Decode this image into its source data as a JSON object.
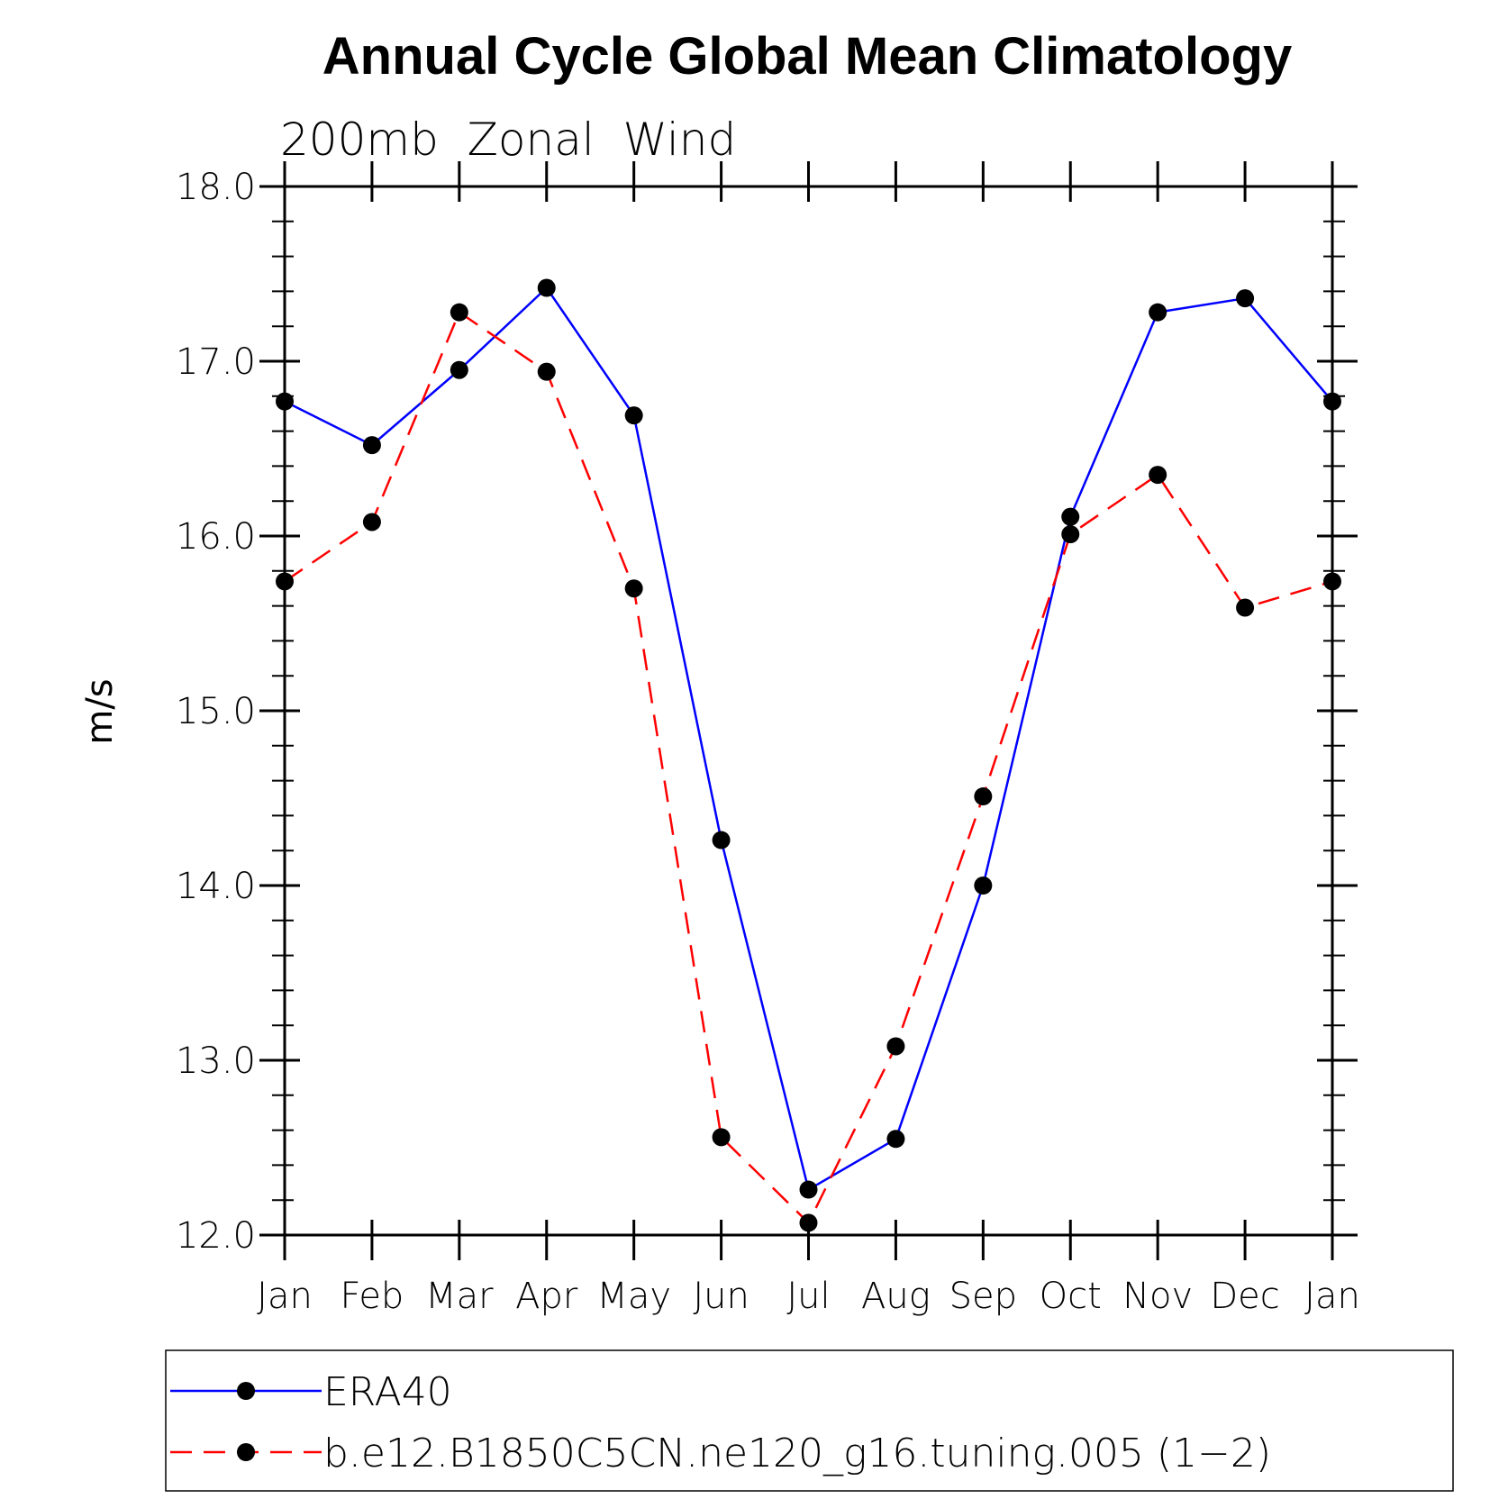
{
  "chart_data": {
    "type": "line",
    "title": "Annual Cycle Global Mean Climatology",
    "subtitle": "200mb  Zonal  Wind",
    "xlabel": "",
    "ylabel": "m/s",
    "categories": [
      "Jan",
      "Feb",
      "Mar",
      "Apr",
      "May",
      "Jun",
      "Jul",
      "Aug",
      "Sep",
      "Oct",
      "Nov",
      "Dec",
      "Jan"
    ],
    "ylim": [
      12.0,
      18.0
    ],
    "yticks": [
      "12.0",
      "13.0",
      "14.0",
      "15.0",
      "16.0",
      "17.0",
      "18.0"
    ],
    "grid": false,
    "legend_position": "bottom",
    "series": [
      {
        "name": "ERA40",
        "color": "#0000ff",
        "line_style": "solid",
        "marker": "filled-circle",
        "values": [
          16.77,
          16.52,
          16.95,
          17.42,
          16.69,
          14.26,
          12.26,
          12.55,
          14.0,
          16.11,
          17.28,
          17.36,
          16.77
        ]
      },
      {
        "name": "b.e12.B1850C5CN.ne120_g16.tuning.005 (1−2)",
        "color": "#ff0000",
        "line_style": "dashed",
        "marker": "filled-circle",
        "values": [
          15.74,
          16.08,
          17.28,
          16.94,
          15.7,
          12.56,
          12.07,
          13.08,
          14.51,
          16.01,
          16.35,
          15.59,
          15.74
        ]
      }
    ]
  }
}
